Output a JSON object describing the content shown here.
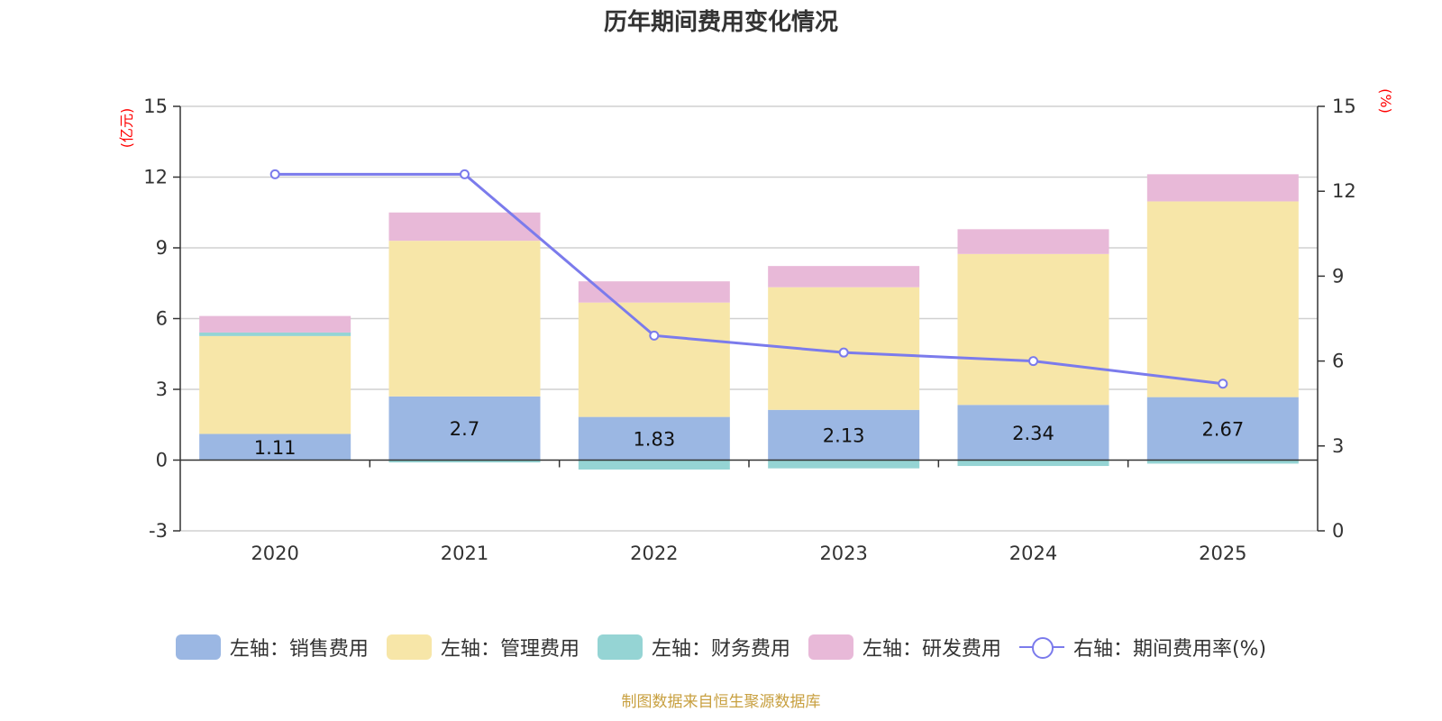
{
  "chart_data": {
    "type": "bar+line",
    "title": "历年期间费用变化情况",
    "categories": [
      "2020",
      "2021",
      "2022",
      "2023",
      "2024",
      "2025"
    ],
    "left_axis": {
      "unit": "(亿元)",
      "ylim": [
        -3,
        15
      ],
      "ticks": [
        -3,
        0,
        3,
        6,
        9,
        12,
        15
      ]
    },
    "right_axis": {
      "unit": "(%)",
      "ylim": [
        0,
        15
      ],
      "ticks": [
        0,
        3,
        6,
        9,
        12,
        15
      ]
    },
    "series": [
      {
        "name": "左轴：销售费用",
        "axis": "left",
        "type": "stacked-bar",
        "color": "#9bb7e3",
        "values": [
          1.11,
          2.7,
          1.83,
          2.13,
          2.34,
          2.67
        ],
        "labels": [
          "1.11",
          "2.7",
          "1.83",
          "2.13",
          "2.34",
          "2.67"
        ]
      },
      {
        "name": "左轴：管理费用",
        "axis": "left",
        "type": "stacked-bar",
        "color": "#f7e6a8",
        "values": [
          4.15,
          6.6,
          4.85,
          5.2,
          6.4,
          8.3
        ]
      },
      {
        "name": "左轴：财务费用",
        "axis": "left",
        "type": "stacked-bar",
        "color": "#95d4d4",
        "values": [
          0.15,
          -0.1,
          -0.4,
          -0.35,
          -0.25,
          -0.15
        ]
      },
      {
        "name": "左轴：研发费用",
        "axis": "left",
        "type": "stacked-bar",
        "color": "#e8b9d8",
        "values": [
          0.7,
          1.2,
          0.9,
          0.9,
          1.05,
          1.15
        ]
      },
      {
        "name": "右轴：期间费用率(%)",
        "axis": "right",
        "type": "line",
        "color": "#7b7bec",
        "values": [
          12.6,
          12.6,
          6.9,
          6.3,
          6.0,
          5.2
        ]
      }
    ],
    "grid": true,
    "legend_position": "bottom"
  },
  "source_note": "制图数据来自恒生聚源数据库"
}
